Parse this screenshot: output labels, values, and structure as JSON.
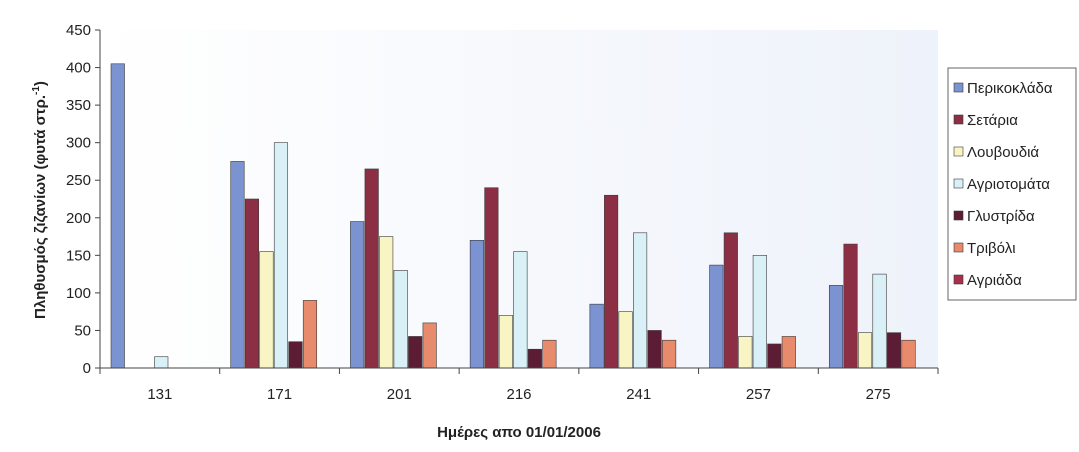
{
  "chart_data": {
    "type": "bar",
    "title": "",
    "xlabel": "Ημέρες απο 01/01/2006",
    "ylabel": "Πληθυσμός ζιζανίων (φυτά στρ.",
    "ylabel_sup": "-1",
    "ylabel_close": ")",
    "ylim": [
      0,
      450
    ],
    "yticks": [
      0,
      50,
      100,
      150,
      200,
      250,
      300,
      350,
      400,
      450
    ],
    "categories": [
      "131",
      "171",
      "201",
      "216",
      "241",
      "257",
      "275"
    ],
    "legend_position": "right",
    "series": [
      {
        "name": "Περικοκλάδα",
        "color": "#7b93d1",
        "values": [
          405,
          275,
          195,
          170,
          85,
          137,
          110
        ]
      },
      {
        "name": "Σετάρια",
        "color": "#8c2f45",
        "values": [
          0,
          225,
          265,
          240,
          230,
          180,
          165
        ]
      },
      {
        "name": "Λουβουδιά",
        "color": "#f8f4c4",
        "values": [
          0,
          155,
          175,
          70,
          75,
          42,
          47
        ]
      },
      {
        "name": "Αγριοτομάτα",
        "color": "#d8f0f6",
        "values": [
          15,
          300,
          130,
          155,
          180,
          150,
          125
        ]
      },
      {
        "name": "Γλυστρίδα",
        "color": "#5c1c34",
        "values": [
          0,
          35,
          42,
          25,
          50,
          32,
          47
        ]
      },
      {
        "name": "Τριβόλι",
        "color": "#e88a6c",
        "values": [
          0,
          90,
          60,
          37,
          37,
          42,
          37
        ]
      },
      {
        "name": "Αγριάδα",
        "color": "#a8304c",
        "values": [
          0,
          0,
          0,
          0,
          0,
          0,
          0
        ]
      }
    ]
  }
}
